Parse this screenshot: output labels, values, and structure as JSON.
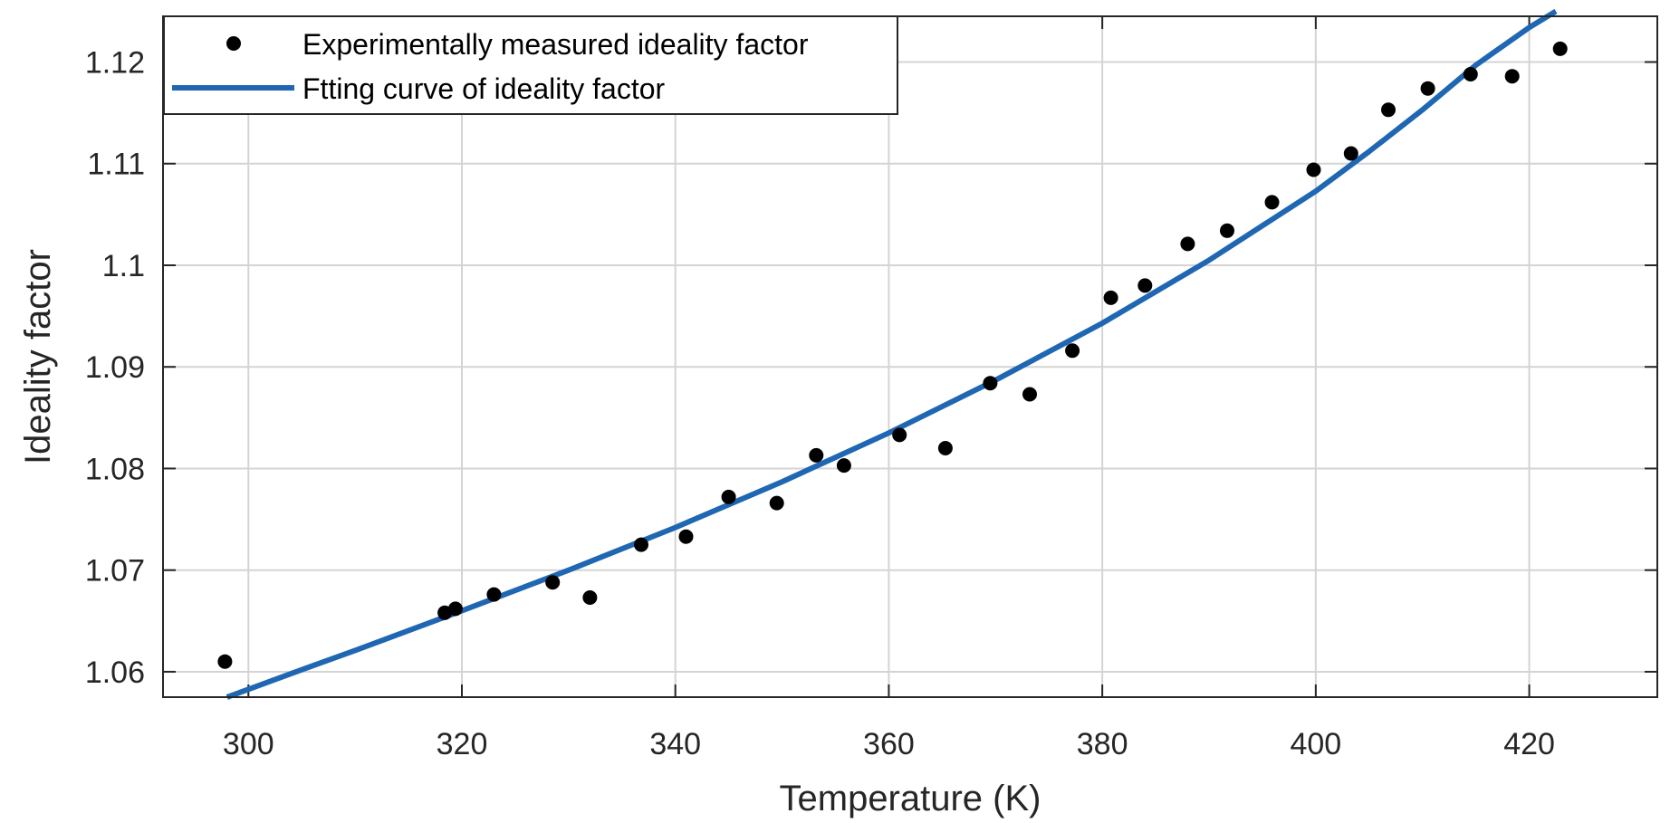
{
  "chart_data": {
    "type": "scatter",
    "title": "",
    "xlabel": "Temperature (K)",
    "ylabel": "Ideality factor",
    "xlim": [
      292,
      432
    ],
    "ylim": [
      1.0575,
      1.1245
    ],
    "xticks": [
      300,
      320,
      340,
      360,
      380,
      400,
      420
    ],
    "yticks": [
      1.06,
      1.07,
      1.08,
      1.09,
      1.1,
      1.11,
      1.12
    ],
    "ytick_labels": [
      "1.06",
      "1.07",
      "1.08",
      "1.09",
      "1.1",
      "1.11",
      "1.12"
    ],
    "grid": true,
    "legend_position": "top-left",
    "series": [
      {
        "name": "Experimentally measured ideality factor",
        "kind": "scatter",
        "color": "#000000",
        "x": [
          297.8,
          318.4,
          319.4,
          323.0,
          328.5,
          332.0,
          336.8,
          341.0,
          345.0,
          349.5,
          353.2,
          355.8,
          361.0,
          365.3,
          369.5,
          373.2,
          377.2,
          380.8,
          384.0,
          388.0,
          391.7,
          395.9,
          399.8,
          403.3,
          406.8,
          410.5,
          414.5,
          418.4,
          422.9
        ],
        "y": [
          1.061,
          1.0658,
          1.0662,
          1.0676,
          1.0688,
          1.0673,
          1.0725,
          1.0733,
          1.0772,
          1.0766,
          1.0813,
          1.0803,
          1.0833,
          1.082,
          1.0884,
          1.0873,
          1.0916,
          1.0968,
          1.098,
          1.1021,
          1.1034,
          1.1062,
          1.1094,
          1.111,
          1.1153,
          1.1174,
          1.1188,
          1.1186,
          1.1213
        ]
      },
      {
        "name": "Ftting curve of ideality factor",
        "kind": "line",
        "color": "#1f67b3",
        "x": [
          298,
          305,
          310,
          320,
          330,
          340,
          350,
          360,
          370,
          380,
          390,
          400,
          405,
          410,
          415,
          420,
          422.5
        ],
        "y": [
          1.0575,
          1.0602,
          1.0621,
          1.066,
          1.07,
          1.0742,
          1.0787,
          1.0835,
          1.0887,
          1.0943,
          1.1005,
          1.1073,
          1.1112,
          1.1153,
          1.1197,
          1.1234,
          1.125
        ]
      }
    ]
  }
}
